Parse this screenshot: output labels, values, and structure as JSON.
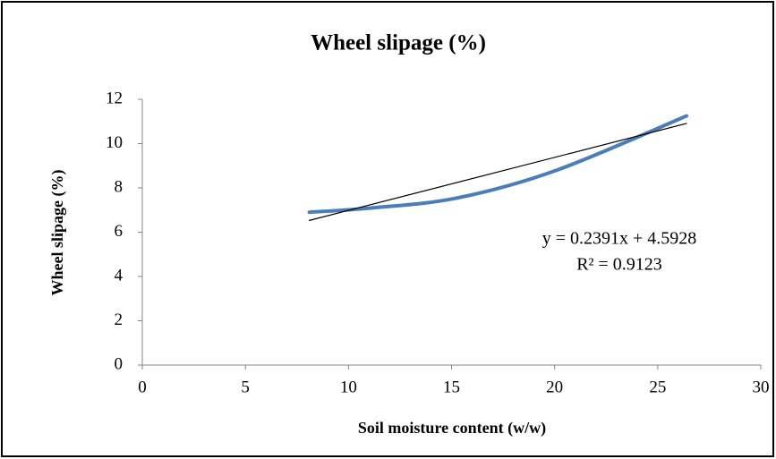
{
  "chart_data": {
    "type": "line",
    "title": "Wheel slipage (%)",
    "xlabel": "Soil moisture content (w/w)",
    "ylabel": "Wheel slipage (%)",
    "series": [
      {
        "color": "#4a7ebb",
        "smooth": true,
        "x": [
          8.1,
          11.2,
          15.3,
          20.1,
          26.4
        ],
        "values": [
          6.9,
          7.1,
          7.55,
          8.8,
          11.25
        ]
      },
      {
        "color": "#000000",
        "x": [
          8.1,
          26.4
        ],
        "values": [
          6.53,
          10.91
        ]
      }
    ],
    "annotations": [
      "y = 0.2391x + 4.5928",
      "R² = 0.9123"
    ],
    "xlim": [
      0,
      30
    ],
    "xticks": [
      0,
      5,
      10,
      15,
      20,
      25,
      30
    ],
    "ylim": [
      0,
      12
    ],
    "yticks": [
      0,
      2,
      4,
      6,
      8,
      10,
      12
    ],
    "grid": false
  }
}
